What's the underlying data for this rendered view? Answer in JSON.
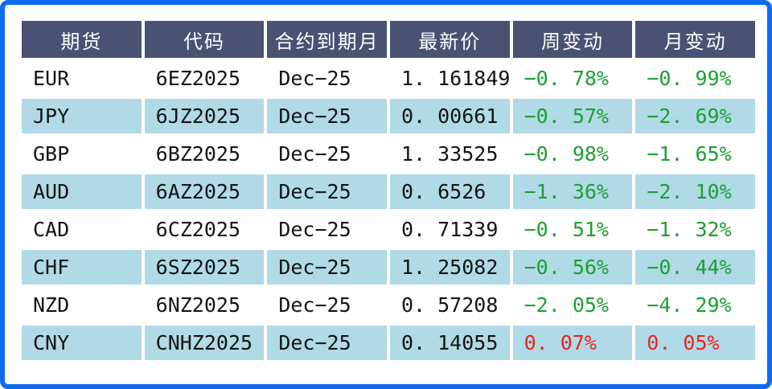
{
  "colors": {
    "frame_border": "#0d6bf0",
    "header_bg": "#4a5172",
    "header_text": "#ffffff",
    "row_alt_bg": "#b0dae6",
    "body_text": "#141414",
    "negative_green": "#1ca032",
    "positive_red": "#e8251d"
  },
  "table": {
    "headers": [
      "期货",
      "代码",
      "合约到期月",
      "最新价",
      "周变动",
      "月变动"
    ],
    "rows": [
      {
        "futures": "EUR",
        "code": "6EZ2025",
        "expiry": "Dec−25",
        "price": "1. 161849",
        "week": "−0. 78%",
        "month": "−0. 99%"
      },
      {
        "futures": "JPY",
        "code": "6JZ2025",
        "expiry": "Dec−25",
        "price": "0. 00661",
        "week": "−0. 57%",
        "month": "−2. 69%"
      },
      {
        "futures": "GBP",
        "code": "6BZ2025",
        "expiry": "Dec−25",
        "price": "1. 33525",
        "week": "−0. 98%",
        "month": "−1. 65%"
      },
      {
        "futures": "AUD",
        "code": "6AZ2025",
        "expiry": "Dec−25",
        "price": "0. 6526",
        "week": "−1. 36%",
        "month": "−2. 10%"
      },
      {
        "futures": "CAD",
        "code": "6CZ2025",
        "expiry": "Dec−25",
        "price": "0. 71339",
        "week": "−0. 51%",
        "month": "−1. 32%"
      },
      {
        "futures": "CHF",
        "code": "6SZ2025",
        "expiry": "Dec−25",
        "price": "1. 25082",
        "week": "−0. 56%",
        "month": "−0. 44%"
      },
      {
        "futures": "NZD",
        "code": "6NZ2025",
        "expiry": "Dec−25",
        "price": "0. 57208",
        "week": "−2. 05%",
        "month": "−4. 29%"
      },
      {
        "futures": "CNY",
        "code": "CNHZ2025",
        "expiry": "Dec−25",
        "price": "0. 14055",
        "week": "0. 07%",
        "month": "0. 05%"
      }
    ]
  },
  "chart_data": {
    "type": "table",
    "title": "",
    "columns": [
      "期货",
      "代码",
      "合约到期月",
      "最新价",
      "周变动",
      "月变动"
    ],
    "rows": [
      [
        "EUR",
        "6EZ2025",
        "Dec-25",
        1.161849,
        -0.78,
        -0.99
      ],
      [
        "JPY",
        "6JZ2025",
        "Dec-25",
        0.00661,
        -0.57,
        -2.69
      ],
      [
        "GBP",
        "6BZ2025",
        "Dec-25",
        1.33525,
        -0.98,
        -1.65
      ],
      [
        "AUD",
        "6AZ2025",
        "Dec-25",
        0.6526,
        -1.36,
        -2.1
      ],
      [
        "CAD",
        "6CZ2025",
        "Dec-25",
        0.71339,
        -0.51,
        -1.32
      ],
      [
        "CHF",
        "6SZ2025",
        "Dec-25",
        1.25082,
        -0.56,
        -0.44
      ],
      [
        "NZD",
        "6NZ2025",
        "Dec-25",
        0.57208,
        -2.05,
        -4.29
      ],
      [
        "CNY",
        "CNHZ2025",
        "Dec-25",
        0.14055,
        0.07,
        0.05
      ]
    ],
    "change_units": "percent",
    "notes": "green = negative change, red = positive change; alternating light-blue row stripes"
  }
}
